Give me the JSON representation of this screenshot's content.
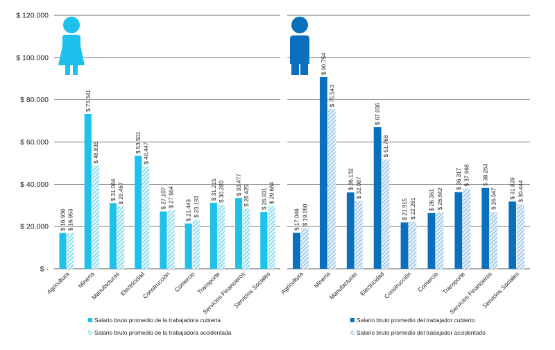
{
  "chart_data": [
    {
      "type": "bar",
      "title": "",
      "xlabel": "",
      "ylabel": "",
      "ylim": [
        0,
        120000
      ],
      "y_ticks": [
        {
          "value": 0,
          "label": "$ -"
        },
        {
          "value": 20000,
          "label": "$ 20.000"
        },
        {
          "value": 40000,
          "label": "$ 40.000"
        },
        {
          "value": 60000,
          "label": "$ 60.000"
        },
        {
          "value": 80000,
          "label": "$ 80.000"
        },
        {
          "value": 100000,
          "label": "$ 100.000"
        },
        {
          "value": 120000,
          "label": "$ 120.000"
        }
      ],
      "grid": true,
      "icon": "woman-icon",
      "categories": [
        "Agricultura",
        "Minería",
        "Manufacturas",
        "Electricidad",
        "Construcción",
        "Comercio",
        "Transporte",
        "Servicios Financieros",
        "Servicios Sociales"
      ],
      "series": [
        {
          "name": "Salario bruto promedio de la trabajadora cubierta",
          "color": "#1ec0ec",
          "pattern": "solid",
          "values": [
            16936,
            73341,
            31084,
            53501,
            27107,
            21443,
            31215,
            33477,
            26931
          ],
          "labels": [
            "$ 16.936",
            "$ 73.341",
            "$ 31.084",
            "$ 53.501",
            "$ 27.107",
            "$ 21.443",
            "$ 31.215",
            "$ 33.477",
            "$ 26.931"
          ]
        },
        {
          "name": "Salario bruto promedio de la trabajadora accidentada",
          "color": "#1ec0ec",
          "pattern": "hatched",
          "values": [
            16953,
            48835,
            29467,
            48447,
            27664,
            23193,
            30280,
            28425,
            29684
          ],
          "labels": [
            "$ 16.953",
            "$ 48.835",
            "$ 29.467",
            "$ 48.447",
            "$ 27.664",
            "$ 23.193",
            "$ 30.280",
            "$ 28.425",
            "$ 29.684"
          ]
        }
      ],
      "legend_position": "bottom"
    },
    {
      "type": "bar",
      "title": "",
      "xlabel": "",
      "ylabel": "",
      "ylim": [
        0,
        120000
      ],
      "grid": true,
      "icon": "man-icon",
      "categories": [
        "Agricultura",
        "Minería",
        "Manufacturas",
        "Electricidad",
        "Construcción",
        "Comercio",
        "Transporte",
        "Servicios Financieros",
        "Servicios Sociales"
      ],
      "series": [
        {
          "name": "Salario bruto promedio del trabajador cubierto",
          "color": "#0a6fbd",
          "pattern": "solid",
          "values": [
            17046,
            90754,
            36132,
            67036,
            21915,
            26361,
            36317,
            38263,
            31829
          ],
          "labels": [
            "$ 17.046",
            "$ 90.754",
            "$ 36.132",
            "$ 67.036",
            "$ 21.915",
            "$ 26.361",
            "$ 36.317",
            "$ 38.263",
            "$ 31.829"
          ]
        },
        {
          "name": "Salario bruto promedio del trabajador accidentado",
          "color": "#0a6fbd",
          "pattern": "hatched",
          "values": [
            19260,
            75543,
            32087,
            51768,
            22281,
            26842,
            37968,
            26947,
            30444
          ],
          "labels": [
            "$ 19.260",
            "$ 75.543",
            "$ 32.087",
            "$ 51.768",
            "$ 22.281",
            "$ 26.842",
            "$ 37.968",
            "$ 26.947",
            "$ 30.444"
          ]
        }
      ],
      "legend_position": "bottom"
    }
  ]
}
